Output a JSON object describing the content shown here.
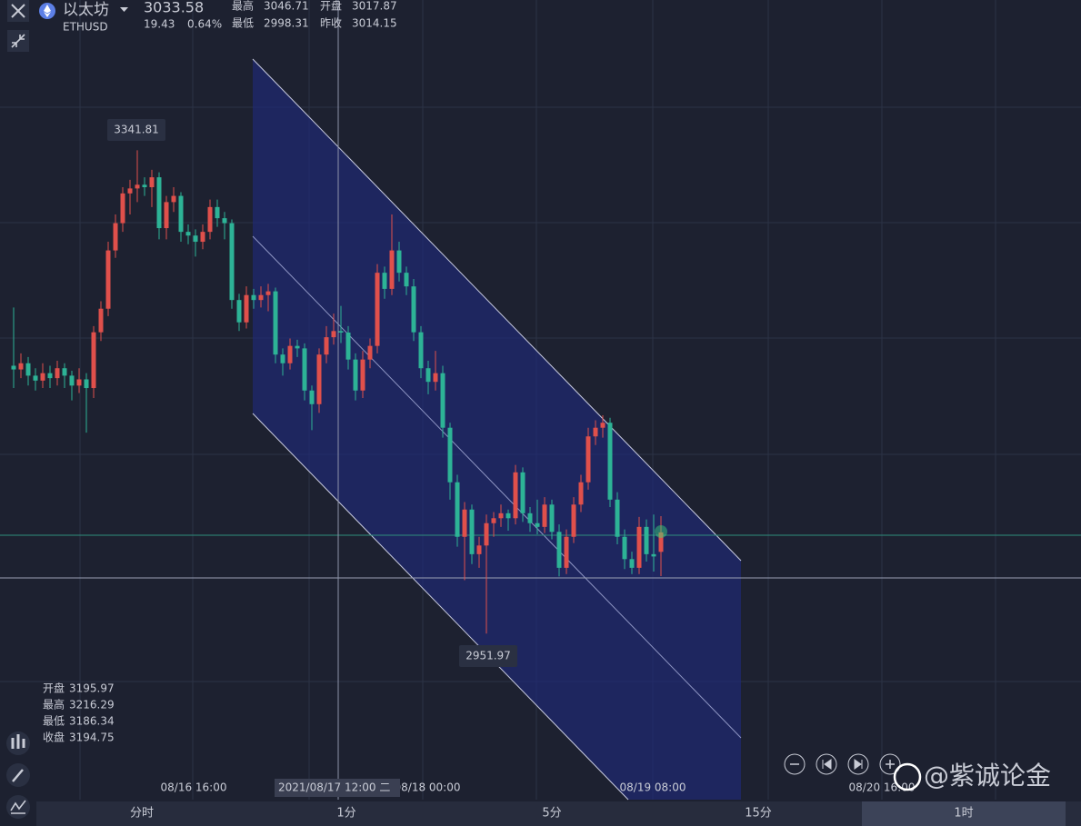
{
  "header": {
    "name": "以太坊",
    "symbol": "ETHUSD",
    "change": "19.43",
    "change_pct": "0.64%",
    "labels": [
      "最高",
      "开盘",
      "最低",
      "昨收"
    ]
  },
  "info_labels": [
    "开盘",
    "最高",
    "最低",
    "收盘"
  ],
  "crosshair_label": "2021/08/17 12:00 二",
  "tabs": [
    "分时",
    "1分",
    "5分",
    "15分",
    "1时"
  ],
  "watermark": "@紫诚论金",
  "chart_data": {
    "type": "candlestick",
    "up_color": "#e0504b",
    "down_color": "#2db396",
    "ylim": [
      2818,
      3463
    ],
    "xticks": [
      "08/16 16:00",
      "08/18 00:00",
      "08/19 08:00",
      "08/20 16:00"
    ],
    "candles": [
      [
        3168,
        3215,
        3150,
        3165
      ],
      [
        3165,
        3178,
        3158,
        3170
      ],
      [
        3170,
        3175,
        3152,
        3160
      ],
      [
        3160,
        3166,
        3148,
        3156
      ],
      [
        3156,
        3170,
        3150,
        3162
      ],
      [
        3162,
        3168,
        3150,
        3158
      ],
      [
        3158,
        3172,
        3152,
        3166
      ],
      [
        3166,
        3170,
        3150,
        3160
      ],
      [
        3160,
        3164,
        3140,
        3152
      ],
      [
        3152,
        3166,
        3146,
        3157
      ],
      [
        3157,
        3162,
        3114,
        3150
      ],
      [
        3150,
        3200,
        3142,
        3195
      ],
      [
        3195,
        3220,
        3188,
        3214
      ],
      [
        3214,
        3268,
        3208,
        3261
      ],
      [
        3261,
        3290,
        3255,
        3283
      ],
      [
        3283,
        3312,
        3276,
        3307
      ],
      [
        3307,
        3318,
        3290,
        3311
      ],
      [
        3311,
        3341.81,
        3300,
        3314
      ],
      [
        3314,
        3320,
        3305,
        3312
      ],
      [
        3312,
        3326,
        3296,
        3320
      ],
      [
        3320,
        3324,
        3270,
        3279
      ],
      [
        3279,
        3305,
        3270,
        3300
      ],
      [
        3300,
        3312,
        3292,
        3305
      ],
      [
        3305,
        3308,
        3268,
        3276
      ],
      [
        3276,
        3282,
        3266,
        3273
      ],
      [
        3273,
        3278,
        3256,
        3268
      ],
      [
        3268,
        3282,
        3262,
        3276
      ],
      [
        3276,
        3302,
        3270,
        3296
      ],
      [
        3296,
        3302,
        3280,
        3287
      ],
      [
        3287,
        3292,
        3270,
        3283
      ],
      [
        3283,
        3286,
        3214,
        3221
      ],
      [
        3221,
        3226,
        3196,
        3203
      ],
      [
        3203,
        3232,
        3198,
        3225
      ],
      [
        3225,
        3230,
        3214,
        3221
      ],
      [
        3221,
        3232,
        3215,
        3225
      ],
      [
        3225,
        3234,
        3212,
        3228
      ],
      [
        3228,
        3231,
        3170,
        3177
      ],
      [
        3177,
        3182,
        3160,
        3170
      ],
      [
        3170,
        3190,
        3165,
        3184
      ],
      [
        3184,
        3189,
        3175,
        3182
      ],
      [
        3182,
        3186,
        3140,
        3148
      ],
      [
        3148,
        3152,
        3116,
        3137
      ],
      [
        3137,
        3182,
        3130,
        3177
      ],
      [
        3177,
        3200,
        3170,
        3191
      ],
      [
        3191,
        3210,
        3185,
        3195.97
      ],
      [
        3195.97,
        3216.29,
        3186.34,
        3194.75
      ],
      [
        3194.75,
        3200,
        3165,
        3173
      ],
      [
        3173,
        3178,
        3140,
        3148
      ],
      [
        3148,
        3180,
        3142,
        3173
      ],
      [
        3173,
        3190,
        3166,
        3184
      ],
      [
        3184,
        3250,
        3178,
        3243
      ],
      [
        3243,
        3248,
        3222,
        3230
      ],
      [
        3230,
        3290,
        3225,
        3261
      ],
      [
        3261,
        3268,
        3236,
        3243
      ],
      [
        3243,
        3248,
        3225,
        3232
      ],
      [
        3232,
        3238,
        3188,
        3195
      ],
      [
        3195,
        3200,
        3158,
        3166
      ],
      [
        3166,
        3172,
        3145,
        3155
      ],
      [
        3155,
        3180,
        3148,
        3162
      ],
      [
        3162,
        3168,
        3110,
        3118
      ],
      [
        3118,
        3122,
        3060,
        3074
      ],
      [
        3074,
        3080,
        3022,
        3030
      ],
      [
        3030,
        3058,
        2995,
        3052
      ],
      [
        3052,
        3056,
        3008,
        3016
      ],
      [
        3016,
        3030,
        3005,
        3023
      ],
      [
        3023,
        3048,
        2951.97,
        3041
      ],
      [
        3041,
        3050,
        3030,
        3045
      ],
      [
        3045,
        3056,
        3038,
        3049
      ],
      [
        3049,
        3052,
        3035,
        3045
      ],
      [
        3045,
        3088,
        3040,
        3082
      ],
      [
        3082,
        3086,
        3042,
        3049
      ],
      [
        3049,
        3054,
        3034,
        3041
      ],
      [
        3041,
        3060,
        3032,
        3038
      ],
      [
        3038,
        3062,
        3033,
        3056
      ],
      [
        3056,
        3060,
        3028,
        3034
      ],
      [
        3034,
        3040,
        2998,
        3005
      ],
      [
        3005,
        3036,
        3000,
        3030
      ],
      [
        3030,
        3062,
        3025,
        3056
      ],
      [
        3056,
        3080,
        3050,
        3074
      ],
      [
        3074,
        3118,
        3068,
        3111
      ],
      [
        3111,
        3124,
        3104,
        3118
      ],
      [
        3118,
        3128,
        3110,
        3122
      ],
      [
        3122,
        3126,
        3054,
        3060
      ],
      [
        3060,
        3066,
        3024,
        3030
      ],
      [
        3030,
        3036,
        3004,
        3012
      ],
      [
        3012,
        3018,
        3000,
        3005
      ],
      [
        3005,
        3046,
        3000,
        3038
      ],
      [
        3038,
        3044,
        3010,
        3016
      ],
      [
        3016,
        3048,
        3002,
        3014.15
      ],
      [
        3017.87,
        3046.71,
        2998.31,
        3033.58
      ]
    ]
  }
}
